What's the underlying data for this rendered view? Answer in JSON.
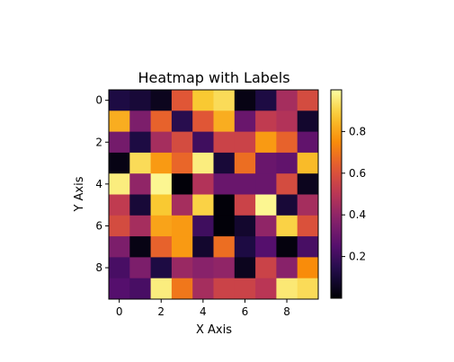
{
  "chart_data": {
    "type": "heatmap",
    "title": "Heatmap with Labels",
    "xlabel": "X Axis",
    "ylabel": "Y Axis",
    "x_ticks": [
      0,
      2,
      4,
      6,
      8
    ],
    "y_ticks": [
      0,
      2,
      4,
      6,
      8
    ],
    "colorbar_ticks": [
      0.2,
      0.4,
      0.6,
      0.8
    ],
    "colorbar_range": [
      0.0,
      1.0
    ],
    "colormap": "inferno",
    "grid": false,
    "values": [
      [
        0.12,
        0.1,
        0.05,
        0.62,
        0.88,
        0.92,
        0.03,
        0.12,
        0.45,
        0.58
      ],
      [
        0.82,
        0.35,
        0.65,
        0.15,
        0.62,
        0.82,
        0.3,
        0.52,
        0.48,
        0.08
      ],
      [
        0.33,
        0.12,
        0.45,
        0.58,
        0.2,
        0.55,
        0.55,
        0.78,
        0.65,
        0.28
      ],
      [
        0.03,
        0.92,
        0.78,
        0.66,
        0.96,
        0.1,
        0.68,
        0.3,
        0.28,
        0.85
      ],
      [
        0.96,
        0.4,
        0.98,
        0.01,
        0.48,
        0.3,
        0.3,
        0.3,
        0.58,
        0.05
      ],
      [
        0.52,
        0.1,
        0.88,
        0.45,
        0.9,
        0.01,
        0.55,
        0.98,
        0.1,
        0.45
      ],
      [
        0.58,
        0.45,
        0.8,
        0.78,
        0.2,
        0.01,
        0.08,
        0.4,
        0.9,
        0.6
      ],
      [
        0.35,
        0.03,
        0.65,
        0.78,
        0.08,
        0.68,
        0.12,
        0.25,
        0.02,
        0.22
      ],
      [
        0.22,
        0.35,
        0.12,
        0.42,
        0.38,
        0.4,
        0.05,
        0.55,
        0.38,
        0.75
      ],
      [
        0.25,
        0.22,
        0.96,
        0.7,
        0.45,
        0.55,
        0.55,
        0.5,
        0.95,
        0.92
      ]
    ]
  }
}
